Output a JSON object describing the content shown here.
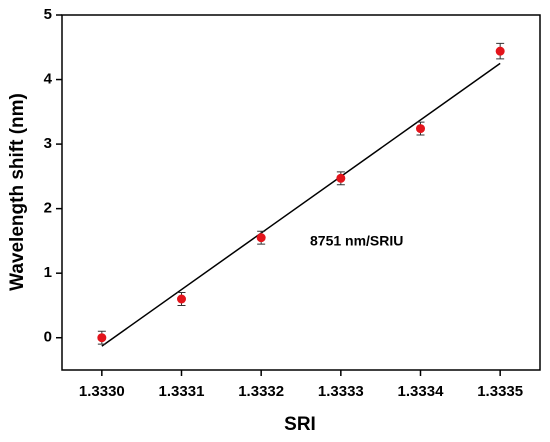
{
  "chart_data": {
    "type": "scatter",
    "xlabel": "SRI",
    "ylabel": "Wavelength shift (nm)",
    "annotation": "8751 nm/SRIU",
    "x": [
      1.333,
      1.3331,
      1.3332,
      1.3333,
      1.3334,
      1.3335
    ],
    "values": [
      0,
      0.6,
      1.55,
      2.47,
      3.24,
      4.44
    ],
    "errors": [
      0.1,
      0.1,
      0.1,
      0.1,
      0.1,
      0.12
    ],
    "color": "#e3141b",
    "fit": {
      "x": [
        1.333,
        1.3335
      ],
      "values": [
        -0.13,
        4.25
      ],
      "color": "#000000"
    },
    "xlim": [
      1.33295,
      1.33355
    ],
    "ylim": [
      -0.5,
      5
    ],
    "xticks": [
      {
        "value": 1.333,
        "label": "1.3330"
      },
      {
        "value": 1.3331,
        "label": "1.3331"
      },
      {
        "value": 1.3332,
        "label": "1.3332"
      },
      {
        "value": 1.3333,
        "label": "1.3333"
      },
      {
        "value": 1.3334,
        "label": "1.3334"
      },
      {
        "value": 1.3335,
        "label": "1.3335"
      }
    ],
    "yticks": [
      0,
      1,
      2,
      3,
      4,
      5
    ]
  }
}
